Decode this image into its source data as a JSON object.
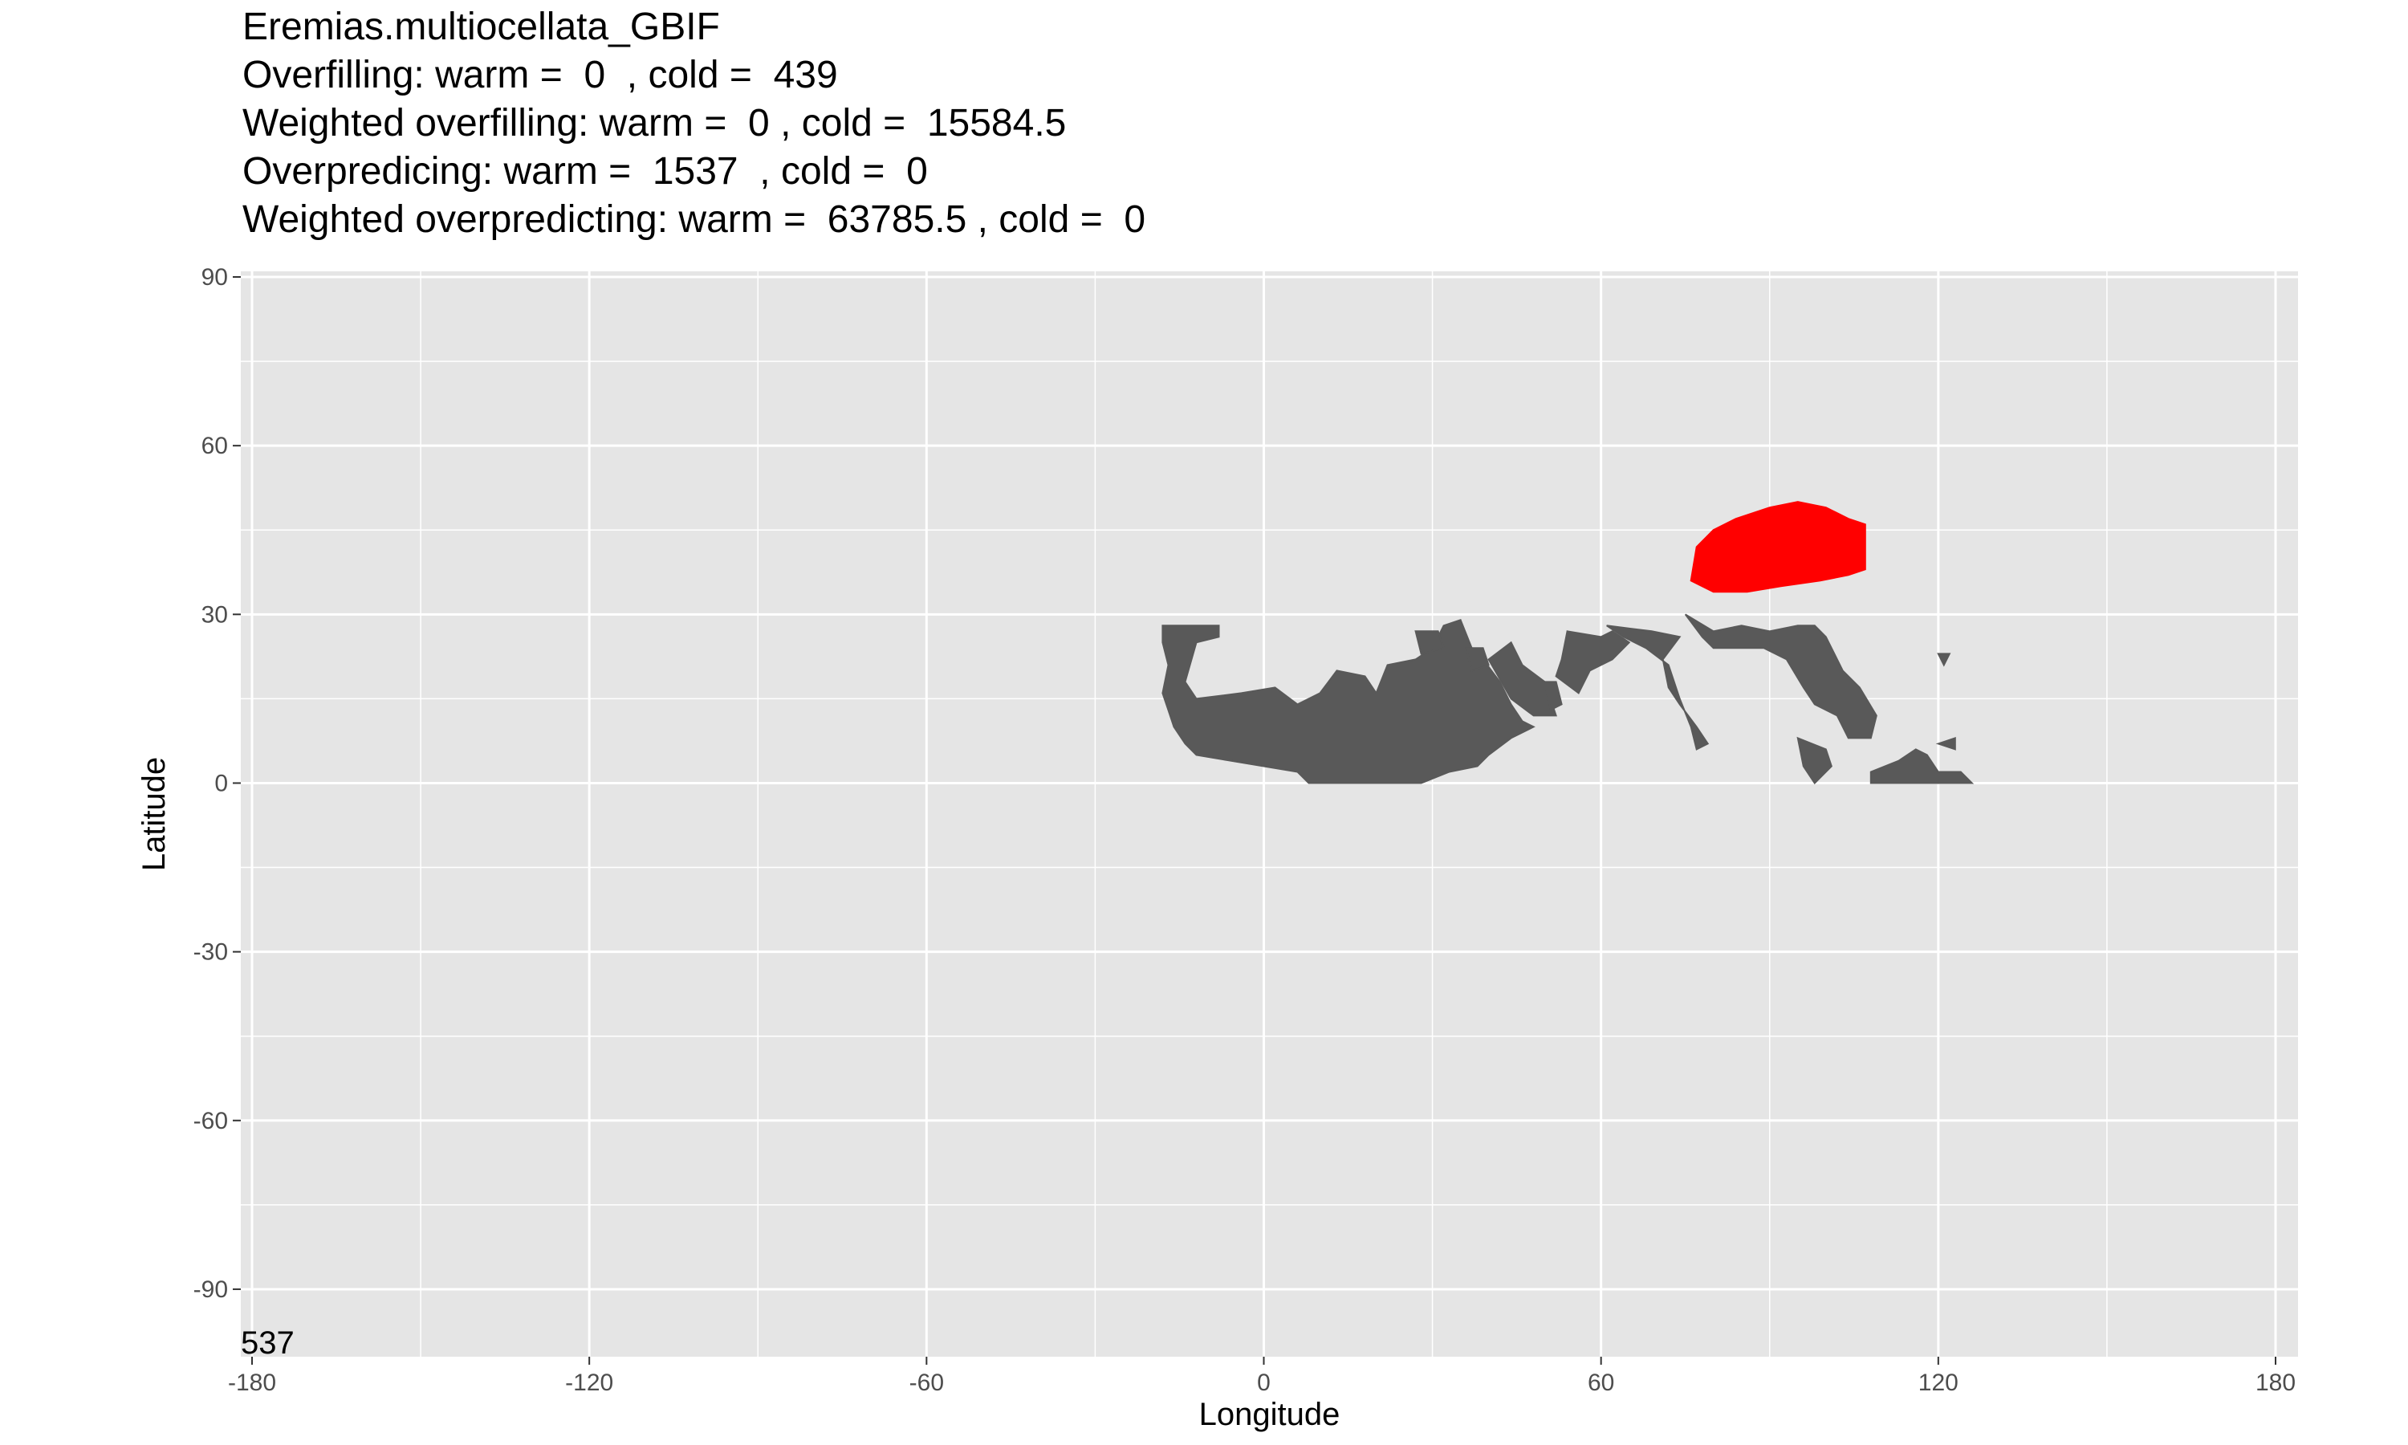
{
  "chart_data": {
    "type": "heatmap",
    "title_lines": [
      "Eremias.multiocellata_GBIF",
      "Overfilling: warm =  0  , cold =  439",
      "Weighted overfilling: warm =  0 , cold =  15584.5",
      "Overpredicing: warm =  1537  , cold =  0",
      "Weighted overpredicting: warm =  63785.5 , cold =  0"
    ],
    "xlabel": "Longitude",
    "ylabel": "Latitude",
    "xlim": [
      -182,
      184
    ],
    "ylim": [
      -102,
      91
    ],
    "x_ticks": [
      -180,
      -120,
      -60,
      0,
      60,
      120,
      180
    ],
    "y_ticks": [
      90,
      60,
      30,
      0,
      -30,
      -60,
      -90
    ],
    "x_tick_labels": [
      "-180",
      "-120",
      "-60",
      "0",
      "60",
      "120",
      "180"
    ],
    "y_tick_labels": [
      "90",
      "60",
      "30",
      "0",
      "-30",
      "-60",
      "-90"
    ],
    "corner_annotation": "537",
    "grid": true,
    "colors": {
      "panel_background": "#e5e5e5",
      "grid_line": "#ffffff",
      "predicted_range": "#595959",
      "overfilling_cold": "#ff0000"
    },
    "regions": [
      {
        "name": "predicted-range",
        "color": "#595959",
        "polygons": [
          [
            [
              -18,
              28
            ],
            [
              -8,
              28
            ],
            [
              -8,
              26
            ],
            [
              -12,
              25
            ],
            [
              -14,
              18
            ],
            [
              -12,
              15
            ],
            [
              -4,
              16
            ],
            [
              2,
              17
            ],
            [
              6,
              14
            ],
            [
              10,
              16
            ],
            [
              13,
              20
            ],
            [
              18,
              19
            ],
            [
              20,
              16
            ],
            [
              22,
              21
            ],
            [
              27,
              22
            ],
            [
              30,
              24
            ],
            [
              32,
              28
            ],
            [
              35,
              29
            ],
            [
              37,
              24
            ],
            [
              39,
              22
            ],
            [
              42,
              18
            ],
            [
              44,
              14
            ],
            [
              46,
              11
            ],
            [
              48,
              10
            ],
            [
              44,
              8
            ],
            [
              40,
              5
            ],
            [
              38,
              3
            ],
            [
              33,
              2
            ],
            [
              28,
              0
            ],
            [
              8,
              0
            ],
            [
              6,
              2
            ],
            [
              0,
              3
            ],
            [
              -6,
              4
            ],
            [
              -12,
              5
            ],
            [
              -14,
              7
            ],
            [
              -16,
              10
            ],
            [
              -17,
              13
            ],
            [
              -18,
              16
            ],
            [
              -17,
              21
            ],
            [
              -18,
              25
            ]
          ],
          [
            [
              27,
              27
            ],
            [
              31,
              27
            ],
            [
              32,
              24
            ],
            [
              28,
              23
            ]
          ],
          [
            [
              36,
              24
            ],
            [
              39,
              24
            ],
            [
              40,
              21
            ],
            [
              37,
              20
            ]
          ],
          [
            [
              40,
              22
            ],
            [
              44,
              25
            ],
            [
              46,
              21
            ],
            [
              50,
              18
            ],
            [
              52,
              12
            ],
            [
              48,
              12
            ],
            [
              44,
              15
            ]
          ],
          [
            [
              50,
              18
            ],
            [
              52,
              18
            ],
            [
              53,
              14
            ],
            [
              51,
              13
            ]
          ],
          [
            [
              54,
              27
            ],
            [
              60,
              26
            ],
            [
              62,
              27
            ],
            [
              65,
              25
            ],
            [
              62,
              22
            ],
            [
              58,
              20
            ],
            [
              56,
              16
            ],
            [
              52,
              19
            ],
            [
              53,
              22
            ]
          ],
          [
            [
              61,
              28
            ],
            [
              69,
              27
            ],
            [
              74,
              26
            ],
            [
              71,
              22
            ],
            [
              72,
              17
            ],
            [
              74,
              14
            ],
            [
              77,
              10
            ],
            [
              79,
              7
            ],
            [
              77,
              6
            ],
            [
              76,
              10
            ],
            [
              74,
              15
            ],
            [
              72,
              21
            ],
            [
              68,
              24
            ],
            [
              64,
              26
            ]
          ],
          [
            [
              75,
              30
            ],
            [
              80,
              27
            ],
            [
              85,
              28
            ],
            [
              90,
              27
            ],
            [
              95,
              28
            ],
            [
              98,
              28
            ],
            [
              100,
              26
            ],
            [
              103,
              20
            ],
            [
              106,
              17
            ],
            [
              109,
              12
            ],
            [
              108,
              8
            ],
            [
              104,
              8
            ],
            [
              102,
              12
            ],
            [
              98,
              14
            ],
            [
              96,
              17
            ],
            [
              93,
              22
            ],
            [
              89,
              24
            ],
            [
              84,
              24
            ],
            [
              80,
              24
            ],
            [
              78,
              26
            ]
          ],
          [
            [
              95,
              8
            ],
            [
              100,
              6
            ],
            [
              101,
              3
            ],
            [
              98,
              0
            ],
            [
              96,
              3
            ]
          ],
          [
            [
              108,
              2
            ],
            [
              113,
              4
            ],
            [
              116,
              6
            ],
            [
              118,
              5
            ],
            [
              120,
              2
            ],
            [
              124,
              2
            ],
            [
              126,
              0
            ],
            [
              108,
              0
            ]
          ],
          [
            [
              120,
              7
            ],
            [
              123,
              8
            ],
            [
              123,
              6
            ]
          ],
          [
            [
              120,
              23
            ],
            [
              122,
              23
            ],
            [
              121,
              21
            ]
          ]
        ]
      },
      {
        "name": "overfilling-cold",
        "color": "#ff0000",
        "polygons": [
          [
            [
              76,
              36
            ],
            [
              77,
              42
            ],
            [
              80,
              45
            ],
            [
              84,
              47
            ],
            [
              90,
              49
            ],
            [
              95,
              50
            ],
            [
              100,
              49
            ],
            [
              104,
              47
            ],
            [
              107,
              46
            ],
            [
              107,
              38
            ],
            [
              104,
              37
            ],
            [
              99,
              36
            ],
            [
              92,
              35
            ],
            [
              86,
              34
            ],
            [
              80,
              34
            ]
          ]
        ]
      }
    ]
  }
}
